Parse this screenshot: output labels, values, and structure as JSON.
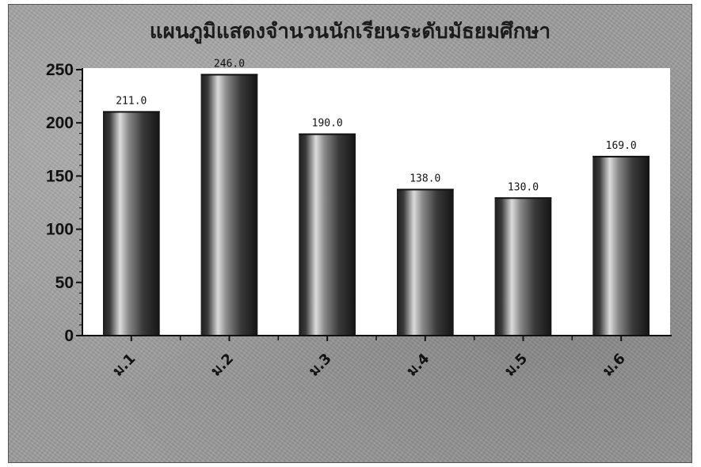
{
  "chart_data": {
    "type": "bar",
    "title": "แผนภูมิแสดงจำนวนนักเรียนระดับมัธยมศึกษา",
    "categories": [
      "ม.1",
      "ม.2",
      "ม.3",
      "ม.4",
      "ม.5",
      "ม.6"
    ],
    "values": [
      211,
      246,
      190,
      138,
      130,
      169
    ],
    "data_labels": [
      "211.0",
      "246.0",
      "190.0",
      "138.0",
      "130.0",
      "169.0"
    ],
    "y_ticks": [
      "0",
      "50",
      "100",
      "150",
      "200",
      "250"
    ],
    "xlabel": "",
    "ylabel": "",
    "ylim": [
      0,
      250
    ],
    "grid": false,
    "legend": "none",
    "colors": {
      "bar_dark": "#1e1e1e",
      "bar_light": "#dcdcdc",
      "plot_background": "#ffffff",
      "frame_background": "#9d9d9d"
    }
  }
}
